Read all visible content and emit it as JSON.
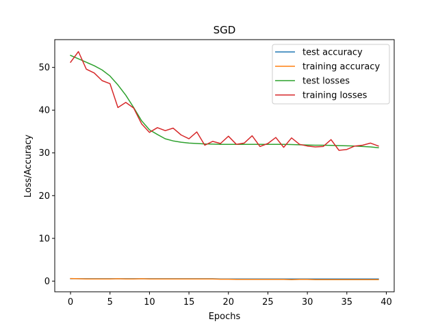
{
  "chart_data": {
    "type": "line",
    "title": "SGD",
    "xlabel": "Epochs",
    "ylabel": "Loss/Accuracy",
    "xlim": [
      -2,
      41
    ],
    "ylim": [
      -2.5,
      56.5
    ],
    "xticks": [
      0,
      5,
      10,
      15,
      20,
      25,
      30,
      35,
      40
    ],
    "yticks": [
      0,
      10,
      20,
      30,
      40,
      50
    ],
    "grid": false,
    "legend_position": "top-right",
    "series": [
      {
        "name": "test accuracy",
        "color": "#1f77b4",
        "x": [
          0,
          1,
          2,
          3,
          4,
          5,
          6,
          7,
          8,
          9,
          10,
          11,
          12,
          13,
          14,
          15,
          16,
          17,
          18,
          19,
          20,
          21,
          22,
          23,
          24,
          25,
          26,
          27,
          28,
          29,
          30,
          31,
          32,
          33,
          34,
          35,
          36,
          37,
          38,
          39
        ],
        "y": [
          0.55,
          0.55,
          0.55,
          0.55,
          0.55,
          0.55,
          0.55,
          0.55,
          0.55,
          0.55,
          0.55,
          0.55,
          0.55,
          0.55,
          0.55,
          0.55,
          0.55,
          0.55,
          0.55,
          0.5,
          0.5,
          0.5,
          0.5,
          0.5,
          0.5,
          0.5,
          0.5,
          0.5,
          0.5,
          0.5,
          0.5,
          0.5,
          0.5,
          0.5,
          0.5,
          0.5,
          0.5,
          0.5,
          0.5,
          0.5
        ]
      },
      {
        "name": "training accuracy",
        "color": "#ff7f0e",
        "x": [
          0,
          1,
          2,
          3,
          4,
          5,
          6,
          7,
          8,
          9,
          10,
          11,
          12,
          13,
          14,
          15,
          16,
          17,
          18,
          19,
          20,
          21,
          22,
          23,
          24,
          25,
          26,
          27,
          28,
          29,
          30,
          31,
          32,
          33,
          34,
          35,
          36,
          37,
          38,
          39
        ],
        "y": [
          0.6,
          0.55,
          0.5,
          0.5,
          0.5,
          0.5,
          0.55,
          0.5,
          0.5,
          0.55,
          0.5,
          0.5,
          0.5,
          0.5,
          0.5,
          0.5,
          0.5,
          0.5,
          0.5,
          0.45,
          0.45,
          0.4,
          0.4,
          0.4,
          0.4,
          0.4,
          0.4,
          0.4,
          0.35,
          0.4,
          0.4,
          0.35,
          0.35,
          0.35,
          0.35,
          0.35,
          0.35,
          0.35,
          0.35,
          0.35
        ]
      },
      {
        "name": "test losses",
        "color": "#2ca02c",
        "x": [
          0,
          1,
          2,
          3,
          4,
          5,
          6,
          7,
          8,
          9,
          10,
          11,
          12,
          13,
          14,
          15,
          16,
          17,
          18,
          19,
          20,
          21,
          22,
          23,
          24,
          25,
          26,
          27,
          28,
          29,
          30,
          31,
          32,
          33,
          34,
          35,
          36,
          37,
          38,
          39
        ],
        "y": [
          52.8,
          52.0,
          51.2,
          50.4,
          49.4,
          48.0,
          45.9,
          43.5,
          40.6,
          37.5,
          35.4,
          34.3,
          33.3,
          32.8,
          32.5,
          32.3,
          32.2,
          32.1,
          32.05,
          32.0,
          32.0,
          32.0,
          32.0,
          32.0,
          32.0,
          32.0,
          32.0,
          32.0,
          31.95,
          31.9,
          31.85,
          31.8,
          31.8,
          31.75,
          31.7,
          31.65,
          31.6,
          31.5,
          31.4,
          31.2
        ]
      },
      {
        "name": "training losses",
        "color": "#d62728",
        "x": [
          0,
          1,
          2,
          3,
          4,
          5,
          6,
          7,
          8,
          9,
          10,
          11,
          12,
          13,
          14,
          15,
          16,
          17,
          18,
          19,
          20,
          21,
          22,
          23,
          24,
          25,
          26,
          27,
          28,
          29,
          30,
          31,
          32,
          33,
          34,
          35,
          36,
          37,
          38,
          39
        ],
        "y": [
          51.2,
          53.7,
          49.6,
          48.7,
          46.9,
          46.2,
          40.6,
          41.8,
          40.5,
          36.8,
          34.8,
          35.9,
          35.2,
          35.8,
          34.2,
          33.3,
          34.9,
          31.8,
          32.7,
          32.2,
          33.9,
          32.0,
          32.3,
          34.0,
          31.5,
          32.2,
          33.6,
          31.3,
          33.5,
          32.0,
          31.6,
          31.4,
          31.5,
          33.1,
          30.6,
          30.8,
          31.6,
          31.8,
          32.3,
          31.6
        ]
      }
    ]
  }
}
